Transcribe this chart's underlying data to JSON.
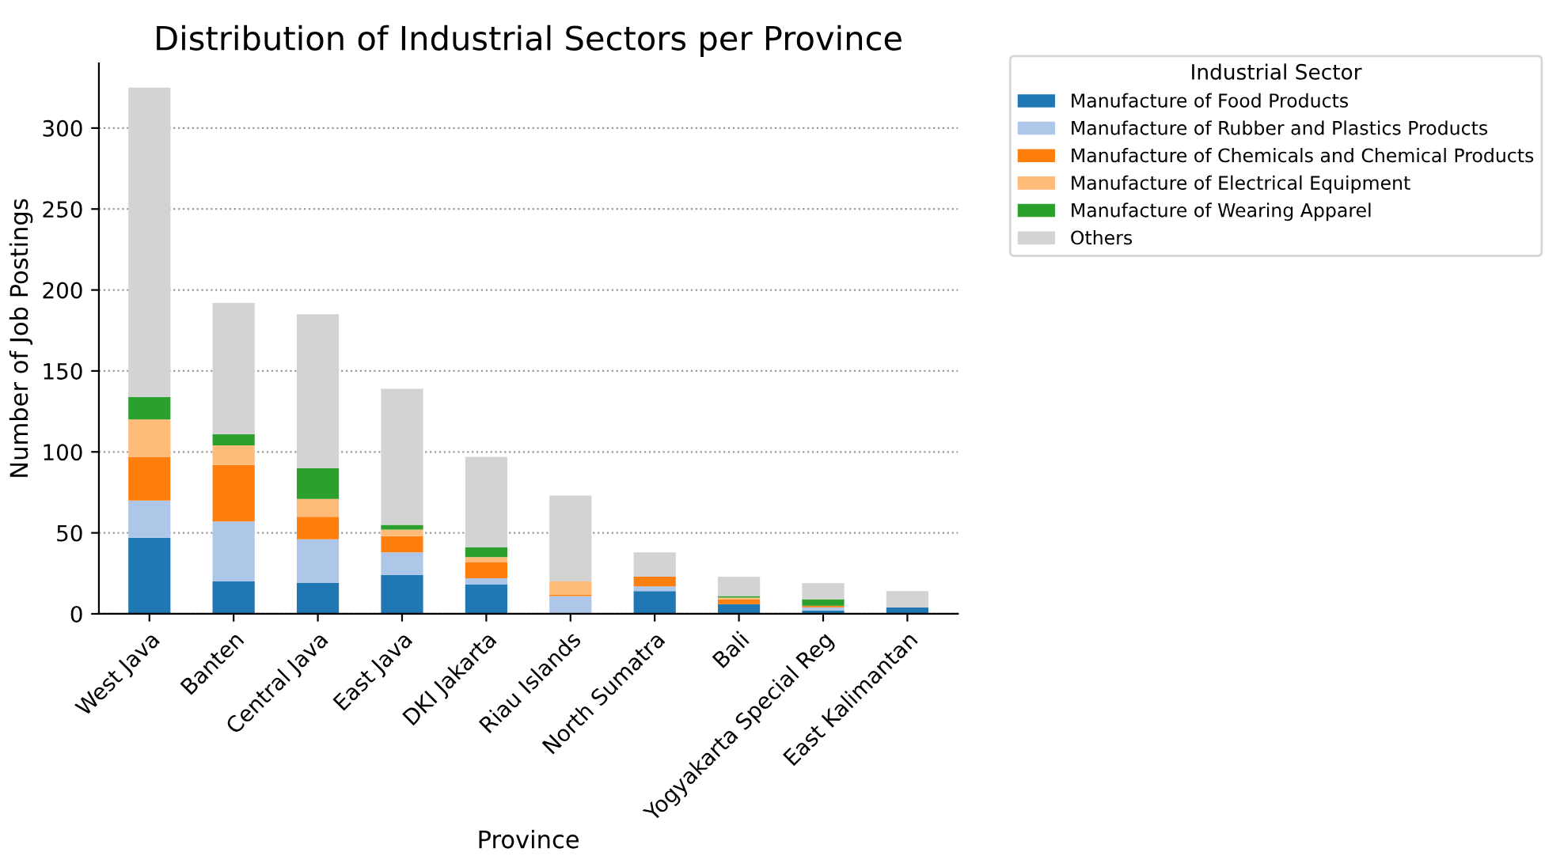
{
  "chart_data": {
    "type": "bar",
    "stacked": true,
    "title": "Distribution of Industrial Sectors per Province",
    "xlabel": "Province",
    "ylabel": "Number of Job Postings",
    "legend_title": "Industrial Sector",
    "legend": "top right",
    "grid": "y",
    "categories": [
      "West Java",
      "Banten",
      "Central Java",
      "East Java",
      "DKI Jakarta",
      "Riau Islands",
      "North Sumatra",
      "Bali",
      "Yogyakarta Special Reg",
      "East Kalimantan"
    ],
    "ylim": [
      0,
      340
    ],
    "yticks": [
      0,
      50,
      100,
      150,
      200,
      250,
      300
    ],
    "series": [
      {
        "name": "Manufacture of Food Products",
        "color": "#1f77b4",
        "values": [
          47,
          20,
          19,
          24,
          18,
          0,
          14,
          6,
          2,
          4
        ]
      },
      {
        "name": "Manufacture of Rubber and Plastics Products",
        "color": "#aec7e8",
        "values": [
          23,
          37,
          27,
          14,
          4,
          11,
          3,
          0,
          2,
          0
        ]
      },
      {
        "name": "Manufacture of Chemicals and Chemical Products",
        "color": "#ff7f0e",
        "values": [
          27,
          35,
          14,
          10,
          10,
          1,
          6,
          3,
          1,
          0
        ]
      },
      {
        "name": "Manufacture of Electrical Equipment",
        "color": "#ffbb78",
        "values": [
          23,
          12,
          11,
          4,
          3,
          8,
          0,
          1,
          0,
          0
        ]
      },
      {
        "name": "Manufacture of Wearing Apparel",
        "color": "#2ca02c",
        "values": [
          14,
          7,
          19,
          3,
          6,
          0,
          0,
          1,
          4,
          0
        ]
      },
      {
        "name": "Others",
        "color": "#d3d3d3",
        "values": [
          191,
          81,
          95,
          84,
          56,
          53,
          15,
          12,
          10,
          10
        ]
      }
    ]
  }
}
